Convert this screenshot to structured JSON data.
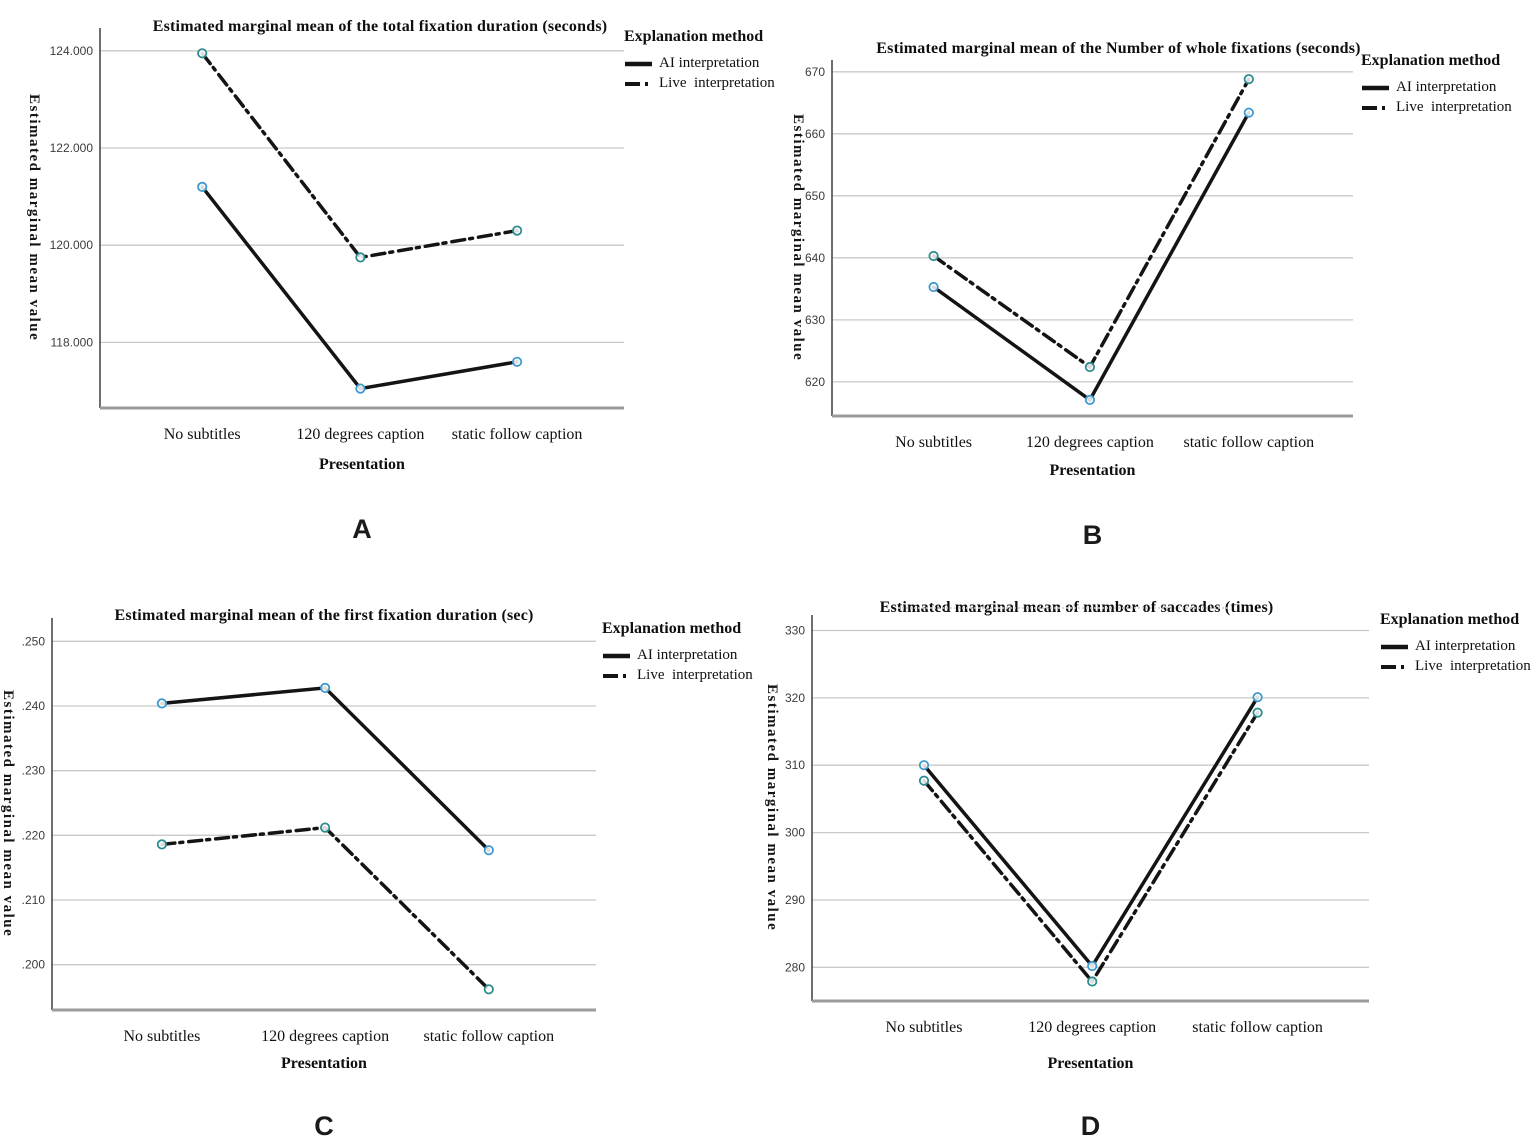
{
  "chart_data": [
    {
      "panel_label": "A",
      "type": "line",
      "title": "Estimated marginal mean of the total fixation duration (seconds)",
      "ylabel": "Estimated marginal mean value",
      "xlabel": "Presentation",
      "categories": [
        "No subtitles",
        "120 degrees caption",
        "static follow caption"
      ],
      "yticks": {
        "labels": [
          "124.000",
          "122.000",
          "120.000",
          "118.000"
        ],
        "values": [
          124,
          122,
          120,
          118
        ]
      },
      "ylim": [
        116.65,
        124.47
      ],
      "grid": true,
      "legend": {
        "title": "Explanation method",
        "position": "right"
      },
      "series": [
        {
          "name": "AI interpretation",
          "line_style": "solid",
          "line_color": "#141414",
          "marker_color": "#3d9ad1",
          "values": [
            121.2,
            117.05,
            117.6
          ]
        },
        {
          "name": "Live  interpretation",
          "line_style": "dash-dot",
          "line_color": "#141414",
          "marker_color": "#2c8c8e",
          "values": [
            123.95,
            119.75,
            120.3
          ]
        }
      ]
    },
    {
      "panel_label": "B",
      "type": "line",
      "title": "Estimated marginal mean of the Number of whole fixations (seconds)",
      "ylabel": "Estimated marginal mean value",
      "xlabel": "Presentation",
      "categories": [
        "No subtitles",
        "120 degrees caption",
        "static follow caption"
      ],
      "yticks": {
        "labels": [
          "670",
          "660",
          "650",
          "640",
          "630",
          "620"
        ],
        "values": [
          670,
          660,
          650,
          640,
          630,
          620
        ]
      },
      "ylim": [
        614.5,
        671.9
      ],
      "grid": true,
      "legend": {
        "title": "Explanation method",
        "position": "right"
      },
      "series": [
        {
          "name": "AI interpretation",
          "line_style": "solid",
          "line_color": "#141414",
          "marker_color": "#3d9ad1",
          "values": [
            635.3,
            617.1,
            663.4
          ]
        },
        {
          "name": "Live  interpretation",
          "line_style": "dash-dot",
          "line_color": "#141414",
          "marker_color": "#2c8c8e",
          "values": [
            640.3,
            622.4,
            668.8
          ]
        }
      ]
    },
    {
      "panel_label": "C",
      "type": "line",
      "title": "Estimated marginal mean of the first fixation duration (sec)",
      "ylabel": "Estimated marginal mean value",
      "xlabel": "Presentation",
      "categories": [
        "No subtitles",
        "120 degrees caption",
        "static follow caption"
      ],
      "yticks": {
        "labels": [
          ".250",
          ".240",
          ".230",
          ".220",
          ".210",
          ".200"
        ],
        "values": [
          0.25,
          0.24,
          0.23,
          0.22,
          0.21,
          0.2
        ]
      },
      "ylim": [
        0.193,
        0.2536
      ],
      "grid": true,
      "legend": {
        "title": "Explanation method",
        "position": "right"
      },
      "series": [
        {
          "name": "AI interpretation",
          "line_style": "solid",
          "line_color": "#141414",
          "marker_color": "#3d9ad1",
          "values": [
            0.2404,
            0.2428,
            0.2177
          ]
        },
        {
          "name": "Live  interpretation",
          "line_style": "dash-dot",
          "line_color": "#141414",
          "marker_color": "#2c8c8e",
          "values": [
            0.2186,
            0.2212,
            0.1962
          ]
        }
      ]
    },
    {
      "panel_label": "D",
      "type": "line",
      "title": "Estimated marginal mean of number of saccades (times)",
      "ylabel": "Estimated marginal mean value",
      "xlabel": "Presentation",
      "categories": [
        "No subtitles",
        "120 degrees caption",
        "static follow caption"
      ],
      "yticks": {
        "labels": [
          "330",
          "320",
          "310",
          "300",
          "290",
          "280"
        ],
        "values": [
          330,
          320,
          310,
          300,
          290,
          280
        ]
      },
      "ylim": [
        275,
        332.3
      ],
      "grid": true,
      "legend": {
        "title": "Explanation method",
        "position": "right"
      },
      "series": [
        {
          "name": "AI interpretation",
          "line_style": "solid",
          "line_color": "#141414",
          "marker_color": "#3d9ad1",
          "values": [
            310.0,
            280.2,
            320.1
          ]
        },
        {
          "name": "Live  interpretation",
          "line_style": "dash-dot",
          "line_color": "#141414",
          "marker_color": "#2c8c8e",
          "values": [
            307.7,
            277.9,
            317.8
          ]
        }
      ]
    }
  ]
}
